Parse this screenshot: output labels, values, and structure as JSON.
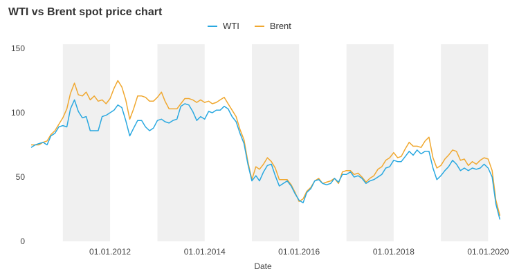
{
  "chart_data": {
    "type": "line",
    "title": "WTI vs Brent spot price chart",
    "xlabel": "Date",
    "ylabel": "",
    "ylim": [
      0,
      150
    ],
    "yticks": [
      0,
      50,
      100,
      150
    ],
    "xlim": [
      "2010-05-01",
      "2020-05-01"
    ],
    "xticks": [
      "01.01.2012",
      "01.01.2014",
      "01.01.2016",
      "01.01.2018",
      "01.01.2020"
    ],
    "shaded_years": [
      2011,
      2013,
      2015,
      2017,
      2019
    ],
    "legend_position": "top-center",
    "grid": false,
    "x": [
      "2010-05",
      "2010-06",
      "2010-07",
      "2010-08",
      "2010-09",
      "2010-10",
      "2010-11",
      "2010-12",
      "2011-01",
      "2011-02",
      "2011-03",
      "2011-04",
      "2011-05",
      "2011-06",
      "2011-07",
      "2011-08",
      "2011-09",
      "2011-10",
      "2011-11",
      "2011-12",
      "2012-01",
      "2012-02",
      "2012-03",
      "2012-04",
      "2012-05",
      "2012-06",
      "2012-07",
      "2012-08",
      "2012-09",
      "2012-10",
      "2012-11",
      "2012-12",
      "2013-01",
      "2013-02",
      "2013-03",
      "2013-04",
      "2013-05",
      "2013-06",
      "2013-07",
      "2013-08",
      "2013-09",
      "2013-10",
      "2013-11",
      "2013-12",
      "2014-01",
      "2014-02",
      "2014-03",
      "2014-04",
      "2014-05",
      "2014-06",
      "2014-07",
      "2014-08",
      "2014-09",
      "2014-10",
      "2014-11",
      "2014-12",
      "2015-01",
      "2015-02",
      "2015-03",
      "2015-04",
      "2015-05",
      "2015-06",
      "2015-07",
      "2015-08",
      "2015-09",
      "2015-10",
      "2015-11",
      "2015-12",
      "2016-01",
      "2016-02",
      "2016-03",
      "2016-04",
      "2016-05",
      "2016-06",
      "2016-07",
      "2016-08",
      "2016-09",
      "2016-10",
      "2016-11",
      "2016-12",
      "2017-01",
      "2017-02",
      "2017-03",
      "2017-04",
      "2017-05",
      "2017-06",
      "2017-07",
      "2017-08",
      "2017-09",
      "2017-10",
      "2017-11",
      "2017-12",
      "2018-01",
      "2018-02",
      "2018-03",
      "2018-04",
      "2018-05",
      "2018-06",
      "2018-07",
      "2018-08",
      "2018-09",
      "2018-10",
      "2018-11",
      "2018-12",
      "2019-01",
      "2019-02",
      "2019-03",
      "2019-04",
      "2019-05",
      "2019-06",
      "2019-07",
      "2019-08",
      "2019-09",
      "2019-10",
      "2019-11",
      "2019-12",
      "2020-01",
      "2020-02",
      "2020-03",
      "2020-04"
    ],
    "series": [
      {
        "name": "WTI",
        "color": "#29a8e0",
        "values": [
          73,
          75,
          76,
          77,
          75,
          82,
          84,
          89,
          90,
          89,
          103,
          110,
          101,
          96,
          97,
          86,
          86,
          86,
          97,
          98,
          100,
          102,
          106,
          104,
          94,
          82,
          88,
          94,
          94,
          89,
          86,
          88,
          94,
          95,
          93,
          92,
          94,
          95,
          105,
          107,
          106,
          101,
          94,
          97,
          95,
          101,
          100,
          102,
          102,
          105,
          103,
          97,
          93,
          84,
          76,
          60,
          47,
          51,
          47,
          54,
          59,
          60,
          51,
          43,
          45,
          47,
          43,
          37,
          32,
          30,
          38,
          41,
          47,
          48,
          45,
          44,
          45,
          49,
          46,
          52,
          52,
          54,
          50,
          51,
          49,
          45,
          47,
          48,
          50,
          52,
          57,
          58,
          63,
          62,
          62,
          66,
          70,
          67,
          71,
          68,
          70,
          70,
          57,
          48,
          51,
          55,
          58,
          63,
          60,
          55,
          57,
          55,
          57,
          56,
          57,
          60,
          57,
          50,
          29,
          17
        ]
      },
      {
        "name": "Brent",
        "color": "#f0a830",
        "values": [
          75,
          75,
          75,
          77,
          78,
          83,
          86,
          91,
          96,
          103,
          115,
          123,
          114,
          113,
          116,
          110,
          113,
          109,
          110,
          107,
          111,
          119,
          125,
          120,
          110,
          95,
          103,
          113,
          113,
          112,
          109,
          109,
          112,
          116,
          109,
          103,
          103,
          103,
          107,
          111,
          111,
          110,
          108,
          110,
          108,
          109,
          107,
          108,
          110,
          112,
          107,
          102,
          97,
          87,
          79,
          62,
          48,
          58,
          56,
          60,
          65,
          62,
          57,
          48,
          48,
          48,
          44,
          38,
          31,
          33,
          39,
          42,
          47,
          49,
          45,
          46,
          47,
          49,
          45,
          54,
          55,
          55,
          52,
          53,
          50,
          46,
          49,
          51,
          56,
          58,
          63,
          65,
          69,
          65,
          66,
          72,
          77,
          74,
          74,
          73,
          78,
          81,
          65,
          57,
          59,
          64,
          67,
          71,
          70,
          63,
          64,
          59,
          62,
          60,
          63,
          65,
          64,
          55,
          32,
          20
        ]
      }
    ]
  }
}
